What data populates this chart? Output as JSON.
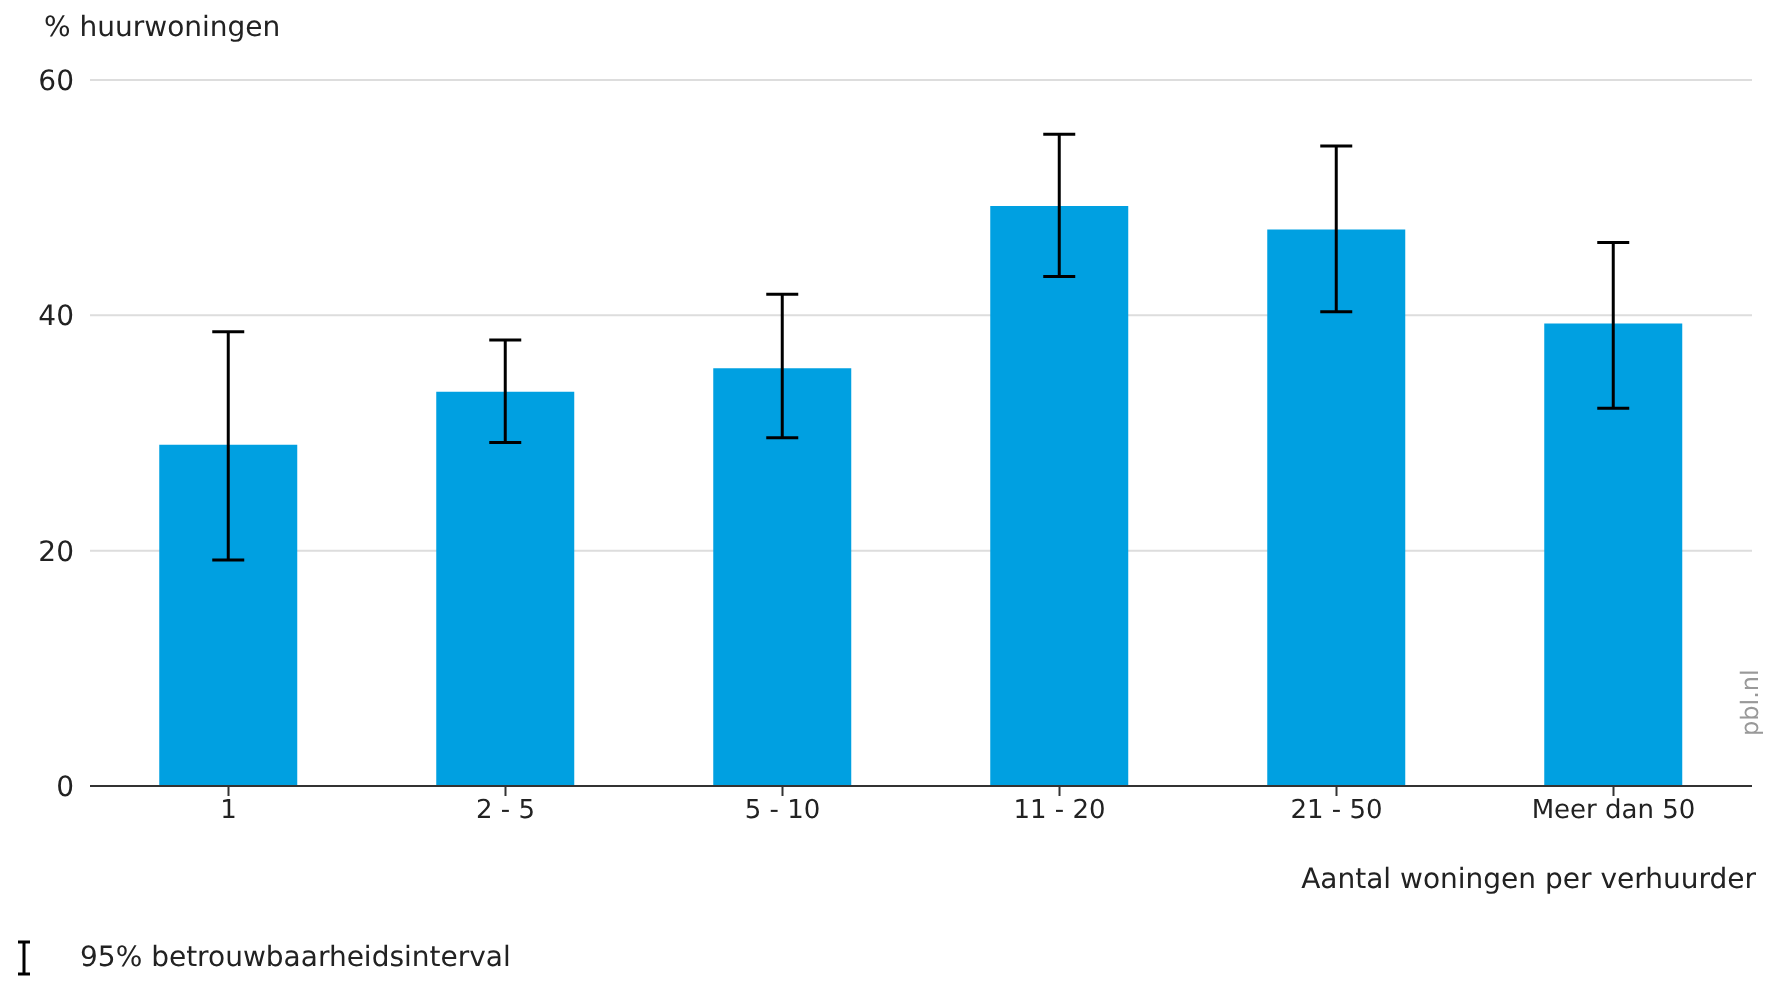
{
  "chart_data": {
    "type": "bar",
    "ylabel": "% huurwoningen",
    "xlabel": "Aantal woningen per verhuurder",
    "categories": [
      "1",
      "2 - 5",
      "5 - 10",
      "11 - 20",
      "21 - 50",
      "Meer dan 50"
    ],
    "values": [
      29,
      33.5,
      35.5,
      49.3,
      47.3,
      39.3
    ],
    "errors": [
      [
        19.2,
        38.6
      ],
      [
        29.2,
        37.9
      ],
      [
        29.6,
        41.8
      ],
      [
        43.3,
        55.4
      ],
      [
        40.3,
        54.4
      ],
      [
        32.1,
        46.2
      ]
    ],
    "color": "#00a0e1",
    "ylim": [
      0,
      60
    ],
    "yticks": [
      0,
      20,
      40,
      60
    ],
    "grid": "y",
    "annotations": [
      "95% betrouwbaarheidsinterval",
      "pbl.nl"
    ]
  }
}
